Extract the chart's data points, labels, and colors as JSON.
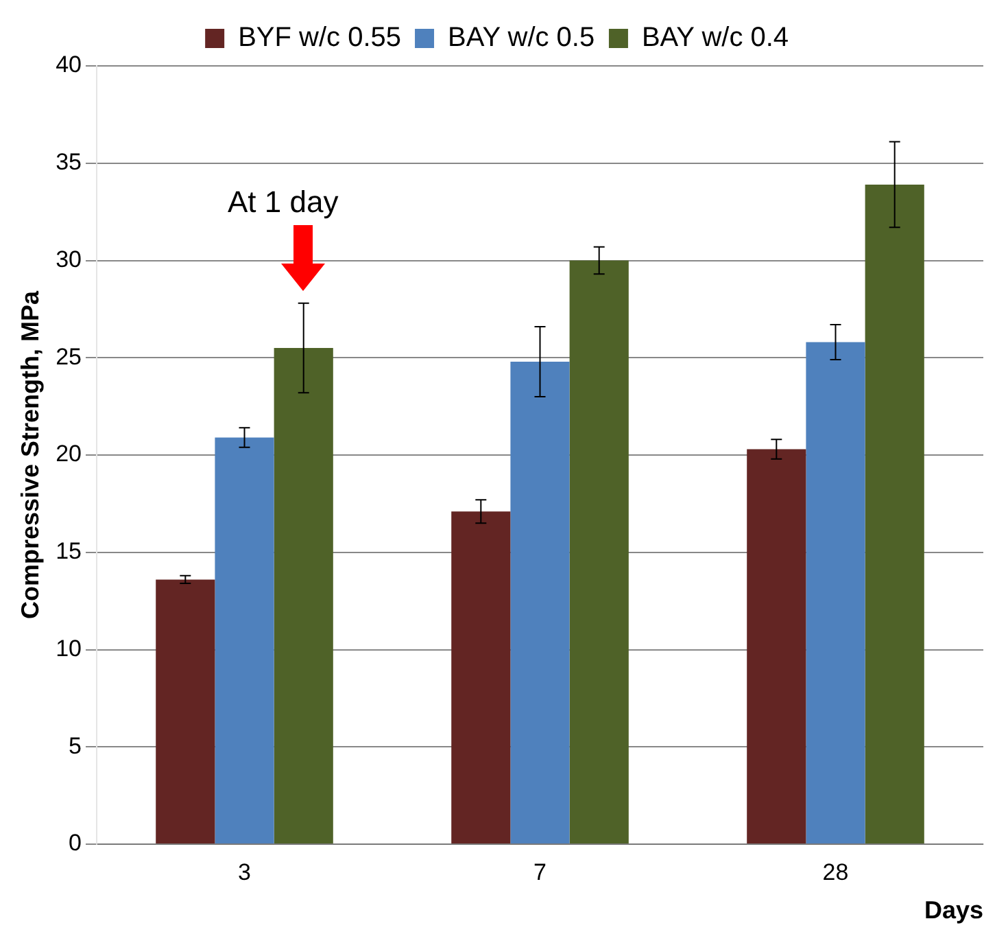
{
  "chart_data": {
    "type": "bar",
    "ylabel": "Compressive Strength, MPa",
    "xlabel": "Days",
    "categories": [
      "3",
      "7",
      "28"
    ],
    "series": [
      {
        "name": "BYF w/c 0.55",
        "color": "#632523",
        "values": [
          13.6,
          17.1,
          20.3
        ],
        "errors": [
          0.2,
          0.6,
          0.5
        ]
      },
      {
        "name": "BAY w/c 0.5",
        "color": "#4f81bd",
        "values": [
          20.9,
          24.8,
          25.8
        ],
        "errors": [
          0.5,
          1.8,
          0.9
        ]
      },
      {
        "name": "BAY w/c 0.4",
        "color": "#4f6228",
        "values": [
          25.5,
          30.0,
          33.9
        ],
        "errors": [
          2.3,
          0.7,
          2.2
        ]
      }
    ],
    "ylim": [
      0,
      40
    ],
    "yticks": [
      0,
      5,
      10,
      15,
      20,
      25,
      30,
      35,
      40
    ],
    "grid": "y",
    "legend": "top",
    "annotations": [
      "At 1 day"
    ]
  }
}
